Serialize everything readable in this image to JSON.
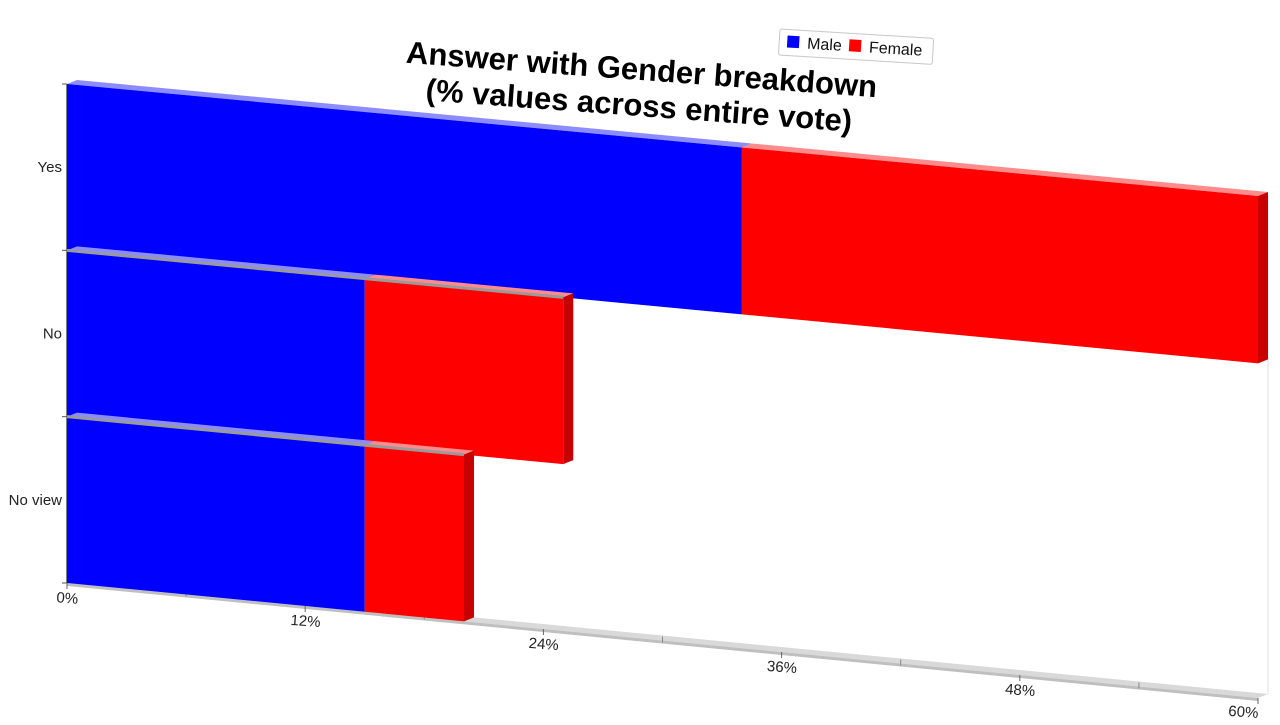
{
  "chart_data": {
    "type": "bar",
    "orientation": "horizontal",
    "stacked": true,
    "perspective": "3d",
    "title": "Answer with Gender breakdown\n(% values across entire vote)",
    "title_lines": [
      "Answer with Gender breakdown",
      "(% values across entire vote)"
    ],
    "categories": [
      "Yes",
      "No",
      "No view"
    ],
    "series": [
      {
        "name": "Male",
        "color": "#0000ff",
        "values": [
          34,
          15,
          15
        ]
      },
      {
        "name": "Female",
        "color": "#ff0000",
        "values": [
          26,
          10,
          5
        ]
      }
    ],
    "xlim": [
      0,
      60
    ],
    "x_ticks": [
      "0%",
      "12%",
      "24%",
      "36%",
      "48%",
      "60%"
    ],
    "legend": {
      "position": "top-right",
      "entries": [
        "Male",
        "Female"
      ]
    },
    "grid": false
  }
}
